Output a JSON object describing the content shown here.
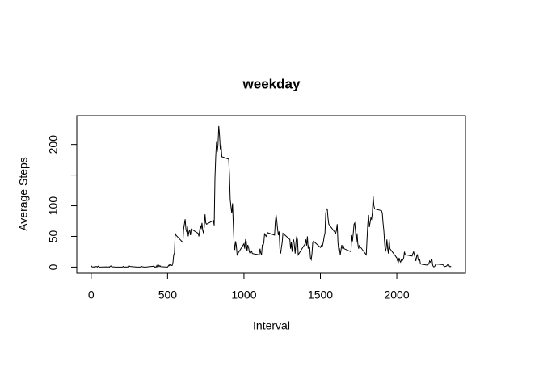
{
  "chart_data": {
    "type": "line",
    "title": "weekday",
    "xlabel": "Interval",
    "ylabel": "Average Steps",
    "color": "#000000",
    "xlim": [
      -94.2,
      2449.2
    ],
    "ylim": [
      -10,
      247
    ],
    "xticks": [
      0,
      500,
      1000,
      1500,
      2000
    ],
    "yticks": [
      0,
      50,
      100,
      200
    ],
    "yminor_ticks": [
      150
    ],
    "x": [
      0,
      5,
      10,
      15,
      20,
      25,
      30,
      35,
      40,
      45,
      50,
      55,
      100,
      105,
      110,
      115,
      120,
      125,
      130,
      135,
      140,
      145,
      150,
      155,
      200,
      205,
      210,
      215,
      220,
      225,
      230,
      235,
      240,
      245,
      250,
      255,
      300,
      305,
      310,
      315,
      320,
      325,
      330,
      335,
      340,
      345,
      350,
      355,
      400,
      405,
      410,
      415,
      420,
      425,
      430,
      435,
      440,
      445,
      450,
      455,
      500,
      505,
      510,
      515,
      520,
      525,
      530,
      535,
      540,
      545,
      550,
      555,
      600,
      605,
      610,
      615,
      620,
      625,
      630,
      635,
      640,
      645,
      650,
      655,
      700,
      705,
      710,
      715,
      720,
      725,
      730,
      735,
      740,
      745,
      750,
      755,
      800,
      805,
      810,
      815,
      820,
      825,
      830,
      835,
      840,
      845,
      850,
      855,
      900,
      905,
      910,
      915,
      920,
      925,
      930,
      935,
      940,
      945,
      950,
      955,
      1000,
      1005,
      1010,
      1015,
      1020,
      1025,
      1030,
      1035,
      1040,
      1045,
      1050,
      1055,
      1100,
      1105,
      1110,
      1115,
      1120,
      1125,
      1130,
      1135,
      1140,
      1145,
      1150,
      1155,
      1200,
      1205,
      1210,
      1215,
      1220,
      1225,
      1230,
      1235,
      1240,
      1245,
      1250,
      1255,
      1300,
      1305,
      1310,
      1315,
      1320,
      1325,
      1330,
      1335,
      1340,
      1345,
      1350,
      1355,
      1400,
      1405,
      1410,
      1415,
      1420,
      1425,
      1430,
      1435,
      1440,
      1445,
      1450,
      1455,
      1500,
      1505,
      1510,
      1515,
      1520,
      1525,
      1530,
      1535,
      1540,
      1545,
      1550,
      1555,
      1600,
      1605,
      1610,
      1615,
      1620,
      1625,
      1630,
      1635,
      1640,
      1645,
      1650,
      1655,
      1700,
      1705,
      1710,
      1715,
      1720,
      1725,
      1730,
      1735,
      1740,
      1745,
      1750,
      1755,
      1800,
      1805,
      1810,
      1815,
      1820,
      1825,
      1830,
      1835,
      1840,
      1845,
      1850,
      1855,
      1900,
      1905,
      1910,
      1915,
      1920,
      1925,
      1930,
      1935,
      1940,
      1945,
      1950,
      1955,
      2000,
      2005,
      2010,
      2015,
      2020,
      2025,
      2030,
      2035,
      2040,
      2045,
      2050,
      2055,
      2100,
      2105,
      2110,
      2115,
      2120,
      2125,
      2130,
      2135,
      2140,
      2145,
      2150,
      2155,
      2200,
      2205,
      2210,
      2215,
      2220,
      2225,
      2230,
      2235,
      2240,
      2245,
      2250,
      2255,
      2300,
      2305,
      2310,
      2315,
      2320,
      2325,
      2330,
      2335,
      2340,
      2345,
      2350,
      2355
    ],
    "values": [
      2.3,
      0.5,
      0.2,
      0.2,
      0.1,
      1.6,
      0.6,
      1,
      0,
      1.6,
      0.4,
      0,
      0.4,
      0,
      0.2,
      0.4,
      0,
      1.4,
      1.9,
      0.2,
      0.2,
      0.3,
      0.3,
      0,
      0,
      0,
      1.1,
      0,
      0,
      0.2,
      0,
      0.3,
      0,
      0,
      1.8,
      1.1,
      0,
      0,
      0,
      0,
      0,
      0.7,
      1.1,
      0.4,
      0.4,
      0.1,
      0,
      0,
      1.2,
      1.2,
      2.2,
      0,
      0.4,
      0,
      2.7,
      0.1,
      3.3,
      0.9,
      2.4,
      0.7,
      0,
      1.9,
      3.6,
      1.6,
      4.3,
      2.7,
      2.6,
      7.3,
      20,
      23,
      55,
      52,
      40,
      62,
      70,
      78,
      62,
      57,
      66,
      50,
      58,
      60,
      52,
      62,
      55,
      50,
      60,
      68,
      62,
      72,
      60,
      55,
      65,
      86,
      72,
      70,
      76,
      68,
      145,
      180,
      204,
      188,
      200,
      230,
      215,
      192,
      200,
      180,
      176,
      150,
      110,
      98,
      88,
      104,
      70,
      40,
      28,
      42,
      35,
      20,
      38,
      30,
      44,
      42,
      26,
      36,
      32,
      25,
      22,
      24,
      26,
      22,
      20,
      30,
      23,
      20,
      36,
      35,
      40,
      55,
      52,
      50,
      53,
      56,
      52,
      73,
      85,
      75,
      62,
      52,
      58,
      30,
      22,
      32,
      40,
      55,
      45,
      30,
      40,
      25,
      40,
      45,
      35,
      22,
      40,
      50,
      45,
      20,
      38,
      45,
      35,
      50,
      30,
      35,
      32,
      15,
      12,
      22,
      40,
      42,
      32,
      35,
      32,
      36,
      42,
      50,
      55,
      88,
      95,
      95,
      80,
      70,
      55,
      60,
      70,
      40,
      28,
      30,
      20,
      28,
      36,
      30,
      35,
      30,
      25,
      52,
      42,
      55,
      70,
      72,
      58,
      40,
      55,
      38,
      30,
      35,
      20,
      45,
      70,
      85,
      65,
      72,
      80,
      78,
      88,
      116,
      100,
      95,
      92,
      88,
      72,
      60,
      40,
      25,
      30,
      45,
      30,
      22,
      45,
      30,
      15,
      10,
      8,
      15,
      10,
      8,
      12,
      10,
      12,
      15,
      25,
      20,
      18,
      22,
      25,
      20,
      15,
      10,
      18,
      20,
      12,
      10,
      12,
      5,
      3,
      4,
      6,
      10,
      8,
      10,
      12,
      3,
      0.5,
      0.5,
      2,
      5,
      4,
      3,
      0.5,
      1,
      1.2,
      1.8,
      3,
      5,
      3.5,
      1,
      0.5,
      1.5
    ]
  }
}
